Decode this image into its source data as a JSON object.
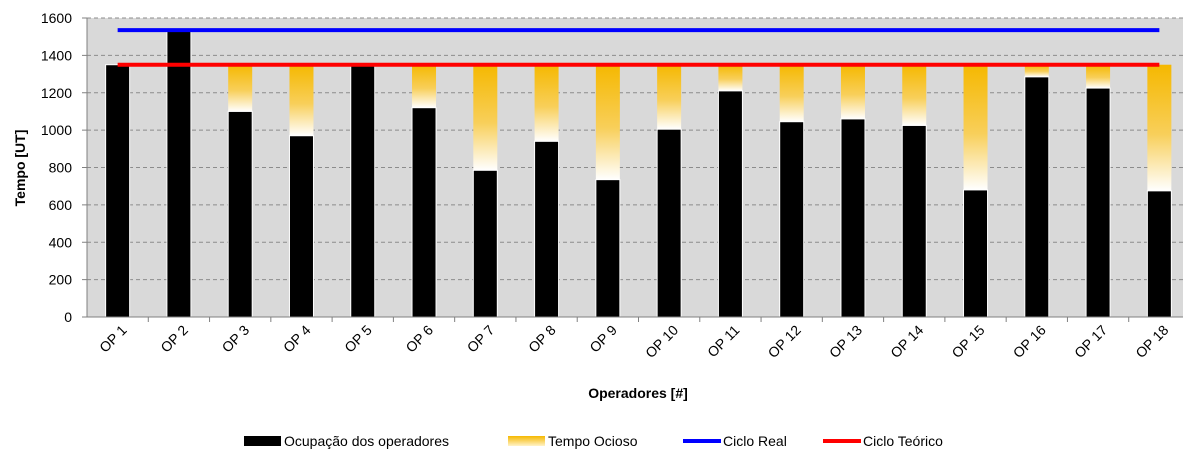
{
  "chart_data": {
    "type": "bar",
    "title": "",
    "xlabel": "Operadores [#]",
    "ylabel": "Tempo [UT]",
    "ylim": [
      0,
      1600
    ],
    "yticks": [
      0,
      200,
      400,
      600,
      800,
      1000,
      1200,
      1400,
      1600
    ],
    "grid": true,
    "legend_position": "bottom",
    "categories": [
      "OP 1",
      "OP 2",
      "OP 3",
      "OP 4",
      "OP 5",
      "OP 6",
      "OP 7",
      "OP 8",
      "OP 9",
      "OP 10",
      "OP 11",
      "OP 12",
      "OP 13",
      "OP 14",
      "OP 15",
      "OP 16",
      "OP 17",
      "OP 18"
    ],
    "series": [
      {
        "name": "Ocupação dos operadores",
        "kind": "stacked-bar",
        "color": "#000000",
        "values": [
          1350,
          1535,
          1100,
          970,
          1355,
          1120,
          785,
          940,
          735,
          1005,
          1210,
          1045,
          1060,
          1025,
          680,
          1285,
          1225,
          675
        ]
      },
      {
        "name": "Tempo Ocioso",
        "kind": "stacked-bar",
        "color": "#F5B800",
        "values": [
          0,
          0,
          250,
          380,
          0,
          230,
          565,
          410,
          615,
          345,
          140,
          305,
          290,
          325,
          670,
          65,
          125,
          675
        ]
      },
      {
        "name": "Ciclo Real",
        "kind": "line",
        "color": "#0000FF",
        "value": 1535
      },
      {
        "name": "Ciclo Teórico",
        "kind": "line",
        "color": "#FF0000",
        "value": 1350
      }
    ]
  }
}
